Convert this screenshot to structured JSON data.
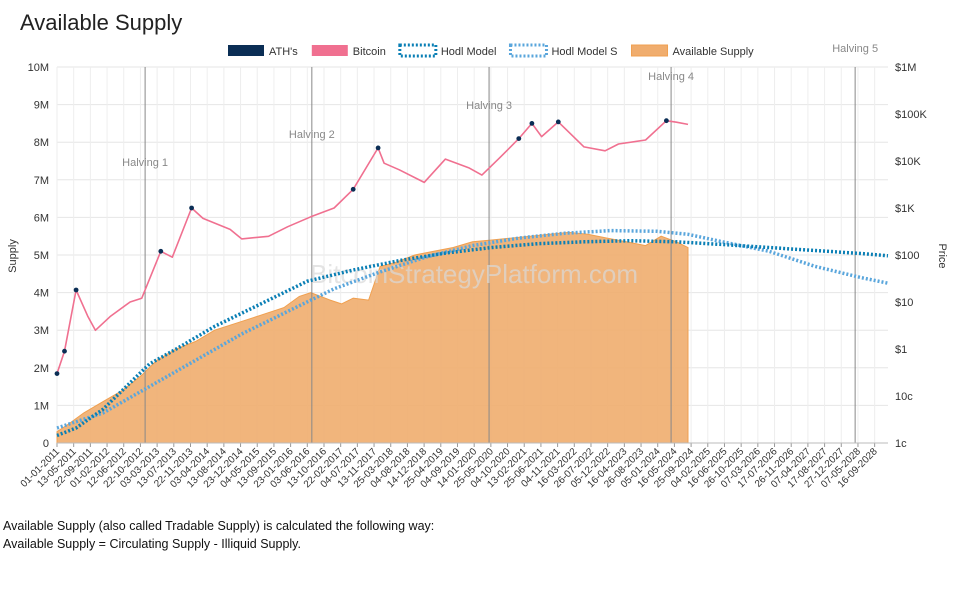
{
  "chart_data": {
    "type": "area",
    "title": "Available Supply",
    "watermark": "BitcoinStrategyPlatform.com",
    "ylabel_left": "Supply",
    "ylabel_right": "Price",
    "y_left_ticks": [
      "0",
      "1M",
      "2M",
      "3M",
      "4M",
      "5M",
      "6M",
      "7M",
      "8M",
      "9M",
      "10M"
    ],
    "y_left_range": [
      0,
      10000000
    ],
    "y_right_ticks": [
      "1c",
      "10c",
      "$1",
      "$10",
      "$100",
      "$1K",
      "$10K",
      "$100K",
      "$1M"
    ],
    "y_right_range_log10": [
      -2,
      6
    ],
    "x_range": [
      "2011-01-01",
      "2028-12-31"
    ],
    "x_tick_labels": [
      "01-01-2011",
      "13-05-2011",
      "22-09-2011",
      "01-02-2012",
      "12-06-2012",
      "22-10-2012",
      "03-03-2013",
      "13-07-2013",
      "22-11-2013",
      "03-04-2014",
      "13-08-2014",
      "23-12-2014",
      "04-05-2015",
      "13-09-2015",
      "23-01-2016",
      "03-06-2016",
      "13-10-2016",
      "22-02-2017",
      "04-07-2017",
      "13-11-2017",
      "25-03-2018",
      "04-08-2018",
      "14-12-2018",
      "25-04-2019",
      "04-09-2019",
      "14-01-2020",
      "25-05-2020",
      "04-10-2020",
      "13-02-2021",
      "25-06-2021",
      "04-11-2021",
      "16-03-2022",
      "26-07-2022",
      "05-12-2022",
      "16-04-2023",
      "26-08-2023",
      "05-01-2024",
      "16-05-2024",
      "25-09-2024",
      "04-02-2025",
      "16-06-2025",
      "26-10-2025",
      "07-03-2026",
      "17-07-2026",
      "26-11-2026",
      "07-04-2027",
      "17-08-2027",
      "27-12-2027",
      "07-05-2028",
      "16-09-2028"
    ],
    "legend": [
      {
        "name": "ATH's",
        "color": "#0b2e55",
        "style": "solid"
      },
      {
        "name": "Bitcoin",
        "color": "#f07090",
        "style": "solid"
      },
      {
        "name": "Hodl Model",
        "color": "#0a7fb5",
        "style": "dotted"
      },
      {
        "name": "Hodl Model S",
        "color": "#5aa6dc",
        "style": "dotted"
      },
      {
        "name": "Available Supply",
        "color": "#f0ad6e",
        "style": "fill"
      }
    ],
    "halvings": [
      {
        "label": "Halving 1",
        "date": "2012-11-28"
      },
      {
        "label": "Halving 2",
        "date": "2016-07-09"
      },
      {
        "label": "Halving 3",
        "date": "2020-05-11"
      },
      {
        "label": "Halving 4",
        "date": "2024-04-20"
      },
      {
        "label": "Halving 5",
        "date": "2028-04-15"
      }
    ],
    "series": [
      {
        "name": "Available Supply",
        "unit": "coins",
        "points": [
          [
            "2011-01-01",
            300000
          ],
          [
            "2011-04-01",
            500000
          ],
          [
            "2011-08-01",
            800000
          ],
          [
            "2012-01-01",
            1100000
          ],
          [
            "2012-06-01",
            1400000
          ],
          [
            "2012-11-01",
            1800000
          ],
          [
            "2013-03-01",
            2200000
          ],
          [
            "2013-08-01",
            2500000
          ],
          [
            "2014-01-01",
            2700000
          ],
          [
            "2014-06-01",
            3000000
          ],
          [
            "2014-12-01",
            3200000
          ],
          [
            "2015-06-01",
            3400000
          ],
          [
            "2015-12-01",
            3600000
          ],
          [
            "2016-04-01",
            3900000
          ],
          [
            "2016-07-01",
            4000000
          ],
          [
            "2016-12-01",
            3800000
          ],
          [
            "2017-03-01",
            3700000
          ],
          [
            "2017-06-01",
            3850000
          ],
          [
            "2017-10-01",
            3800000
          ],
          [
            "2018-01-01",
            4700000
          ],
          [
            "2018-05-01",
            4800000
          ],
          [
            "2018-10-01",
            5000000
          ],
          [
            "2019-03-01",
            5100000
          ],
          [
            "2019-08-01",
            5200000
          ],
          [
            "2020-01-01",
            5350000
          ],
          [
            "2020-06-01",
            5400000
          ],
          [
            "2020-11-01",
            5450000
          ],
          [
            "2021-04-01",
            5500000
          ],
          [
            "2021-09-01",
            5550000
          ],
          [
            "2022-02-01",
            5600000
          ],
          [
            "2022-07-01",
            5550000
          ],
          [
            "2022-12-01",
            5450000
          ],
          [
            "2023-05-01",
            5350000
          ],
          [
            "2023-10-01",
            5250000
          ],
          [
            "2024-02-01",
            5500000
          ],
          [
            "2024-06-01",
            5350000
          ],
          [
            "2024-09-01",
            5200000
          ]
        ]
      },
      {
        "name": "Hodl Model",
        "unit": "coins",
        "points": [
          [
            "2011-01-01",
            200000
          ],
          [
            "2011-06-01",
            400000
          ],
          [
            "2012-01-01",
            900000
          ],
          [
            "2012-08-01",
            1600000
          ],
          [
            "2013-01-01",
            2100000
          ],
          [
            "2013-08-01",
            2500000
          ],
          [
            "2014-06-01",
            3100000
          ],
          [
            "2015-06-01",
            3700000
          ],
          [
            "2016-06-01",
            4300000
          ],
          [
            "2017-06-01",
            4600000
          ],
          [
            "2018-06-01",
            4850000
          ],
          [
            "2019-06-01",
            5050000
          ],
          [
            "2020-06-01",
            5200000
          ],
          [
            "2021-06-01",
            5300000
          ],
          [
            "2022-06-01",
            5350000
          ],
          [
            "2023-06-01",
            5380000
          ],
          [
            "2024-06-01",
            5350000
          ],
          [
            "2025-06-01",
            5280000
          ],
          [
            "2026-06-01",
            5200000
          ],
          [
            "2027-06-01",
            5120000
          ],
          [
            "2028-06-01",
            5040000
          ],
          [
            "2028-12-31",
            4980000
          ]
        ]
      },
      {
        "name": "Hodl Model S",
        "unit": "coins",
        "points": [
          [
            "2011-01-01",
            400000
          ],
          [
            "2012-01-01",
            800000
          ],
          [
            "2013-01-01",
            1500000
          ],
          [
            "2014-01-01",
            2200000
          ],
          [
            "2015-01-01",
            2900000
          ],
          [
            "2016-01-01",
            3500000
          ],
          [
            "2017-01-01",
            4100000
          ],
          [
            "2018-01-01",
            4550000
          ],
          [
            "2019-01-01",
            4950000
          ],
          [
            "2020-01-01",
            5250000
          ],
          [
            "2021-01-01",
            5450000
          ],
          [
            "2022-01-01",
            5580000
          ],
          [
            "2023-01-01",
            5650000
          ],
          [
            "2024-01-01",
            5630000
          ],
          [
            "2024-09-01",
            5550000
          ],
          [
            "2025-06-01",
            5350000
          ],
          [
            "2026-06-01",
            5100000
          ],
          [
            "2027-06-01",
            4700000
          ],
          [
            "2028-06-01",
            4400000
          ],
          [
            "2028-12-31",
            4250000
          ]
        ]
      },
      {
        "name": "Bitcoin",
        "unit": "USD (log scale)",
        "points": [
          [
            "2011-01-01",
            0.3
          ],
          [
            "2011-03-01",
            0.9
          ],
          [
            "2011-06-01",
            18
          ],
          [
            "2011-09-01",
            5
          ],
          [
            "2011-11-01",
            2.5
          ],
          [
            "2012-03-01",
            5
          ],
          [
            "2012-08-01",
            10
          ],
          [
            "2012-11-01",
            12
          ],
          [
            "2013-04-01",
            120
          ],
          [
            "2013-07-01",
            90
          ],
          [
            "2013-12-01",
            1000
          ],
          [
            "2014-03-01",
            600
          ],
          [
            "2014-10-01",
            350
          ],
          [
            "2015-01-01",
            220
          ],
          [
            "2015-08-01",
            250
          ],
          [
            "2016-01-01",
            400
          ],
          [
            "2016-07-01",
            650
          ],
          [
            "2017-01-01",
            1000
          ],
          [
            "2017-06-01",
            2500
          ],
          [
            "2017-12-15",
            19000
          ],
          [
            "2018-02-01",
            9000
          ],
          [
            "2018-06-01",
            6500
          ],
          [
            "2018-12-15",
            3500
          ],
          [
            "2019-06-01",
            11000
          ],
          [
            "2019-12-01",
            7200
          ],
          [
            "2020-03-15",
            5000
          ],
          [
            "2020-08-01",
            11500
          ],
          [
            "2021-01-01",
            30000
          ],
          [
            "2021-04-15",
            63000
          ],
          [
            "2021-07-01",
            33000
          ],
          [
            "2021-11-10",
            68000
          ],
          [
            "2022-06-01",
            20000
          ],
          [
            "2022-11-15",
            16500
          ],
          [
            "2023-03-01",
            23000
          ],
          [
            "2023-10-01",
            28000
          ],
          [
            "2024-03-14",
            72000
          ],
          [
            "2024-06-01",
            67000
          ],
          [
            "2024-09-01",
            60000
          ]
        ]
      }
    ]
  },
  "description": {
    "line1": "Available Supply (also called Tradable Supply) is calculated the following way:",
    "line2": "Available Supply = Circulating Supply - Illiquid Supply."
  }
}
